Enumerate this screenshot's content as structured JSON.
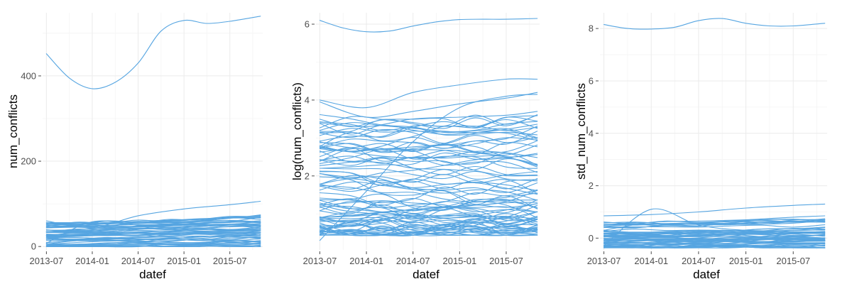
{
  "style": {
    "line_color": "#56a5e1"
  },
  "chart_data": [
    {
      "type": "line",
      "xlabel": "datef",
      "ylabel": "num_conflicts",
      "x_ticks": [
        "2013-07",
        "2014-01",
        "2014-07",
        "2015-01",
        "2015-07"
      ],
      "x_tick_months": [
        0,
        6,
        12,
        18,
        24
      ],
      "xlim_months": [
        -0.5,
        28.3
      ],
      "y_ticks": [
        0,
        200,
        400
      ],
      "y_tick_labels": [
        "0",
        "200",
        "400"
      ],
      "ylim": [
        -8,
        548
      ],
      "grid": true,
      "legend": "none",
      "highlight_series": [
        {
          "months": [
            0,
            3,
            6,
            9,
            12,
            15,
            18,
            21,
            24,
            28
          ],
          "values": [
            452,
            395,
            370,
            385,
            430,
            505,
            530,
            523,
            528,
            540
          ]
        },
        {
          "months": [
            0,
            6,
            12,
            18,
            24,
            28
          ],
          "values": [
            60,
            45,
            72,
            88,
            98,
            106
          ]
        },
        {
          "months": [
            0,
            6,
            12,
            18,
            24,
            28
          ],
          "values": [
            34,
            42,
            48,
            56,
            66,
            74
          ]
        },
        {
          "months": [
            0,
            6,
            12,
            18,
            24,
            28
          ],
          "values": [
            8,
            58,
            50,
            42,
            40,
            46
          ]
        }
      ],
      "bulk": {
        "count": 60,
        "start_range": [
          1,
          55
        ],
        "end_range": [
          1,
          70
        ]
      }
    },
    {
      "type": "line",
      "xlabel": "datef",
      "ylabel": "log(num_conflicts)",
      "x_ticks": [
        "2013-07",
        "2014-01",
        "2014-07",
        "2015-01",
        "2015-07"
      ],
      "x_tick_months": [
        0,
        6,
        12,
        18,
        24
      ],
      "xlim_months": [
        -0.5,
        28.3
      ],
      "y_ticks": [
        2,
        4,
        6
      ],
      "y_tick_labels": [
        "2",
        "4",
        "6"
      ],
      "ylim": [
        0.05,
        6.3
      ],
      "grid": true,
      "legend": "none",
      "highlight_series": [
        {
          "months": [
            0,
            3,
            6,
            9,
            12,
            15,
            18,
            21,
            24,
            28
          ],
          "values": [
            6.1,
            5.9,
            5.8,
            5.82,
            5.95,
            6.06,
            6.12,
            6.13,
            6.13,
            6.15
          ]
        },
        {
          "months": [
            0,
            6,
            12,
            18,
            24,
            28
          ],
          "values": [
            4.0,
            3.8,
            4.2,
            4.4,
            4.55,
            4.55
          ]
        },
        {
          "months": [
            0,
            6,
            12,
            18,
            24,
            28
          ],
          "values": [
            3.95,
            3.55,
            3.7,
            3.9,
            4.05,
            4.2
          ]
        },
        {
          "months": [
            0,
            6,
            12,
            18,
            24,
            28
          ],
          "values": [
            0.3,
            1.6,
            2.9,
            3.8,
            4.1,
            4.15
          ]
        },
        {
          "months": [
            0,
            6,
            12,
            18,
            24,
            28
          ],
          "values": [
            3.4,
            3.3,
            3.5,
            3.55,
            3.6,
            3.7
          ]
        }
      ],
      "bulk": {
        "count": 85,
        "start_range": [
          0.5,
          3.6
        ],
        "end_range": [
          0.5,
          3.5
        ]
      }
    },
    {
      "type": "line",
      "xlabel": "datef",
      "ylabel": "std_num_conflicts",
      "x_ticks": [
        "2013-07",
        "2014-01",
        "2014-07",
        "2015-01",
        "2015-07"
      ],
      "x_tick_months": [
        0,
        6,
        12,
        18,
        24
      ],
      "xlim_months": [
        -0.5,
        28.3
      ],
      "y_ticks": [
        0,
        2,
        4,
        6,
        8
      ],
      "y_tick_labels": [
        "0",
        "2",
        "4",
        "6",
        "8"
      ],
      "ylim": [
        -0.45,
        8.6
      ],
      "grid": true,
      "legend": "none",
      "highlight_series": [
        {
          "months": [
            0,
            3,
            6,
            9,
            12,
            15,
            18,
            21,
            24,
            28
          ],
          "values": [
            8.15,
            8.0,
            7.98,
            8.05,
            8.3,
            8.38,
            8.2,
            8.1,
            8.1,
            8.2
          ]
        },
        {
          "months": [
            0,
            6,
            12,
            18,
            24,
            28
          ],
          "values": [
            0.85,
            0.9,
            1.0,
            1.15,
            1.25,
            1.3
          ]
        },
        {
          "months": [
            0,
            6,
            12,
            18,
            24,
            28
          ],
          "values": [
            0.3,
            0.6,
            0.65,
            0.7,
            0.8,
            0.85
          ]
        },
        {
          "months": [
            0,
            6,
            12,
            18,
            24,
            28
          ],
          "values": [
            -0.3,
            1.1,
            0.5,
            0.3,
            0.3,
            0.4
          ]
        }
      ],
      "bulk": {
        "count": 60,
        "start_range": [
          -0.35,
          0.6
        ],
        "end_range": [
          -0.35,
          0.7
        ]
      }
    }
  ]
}
